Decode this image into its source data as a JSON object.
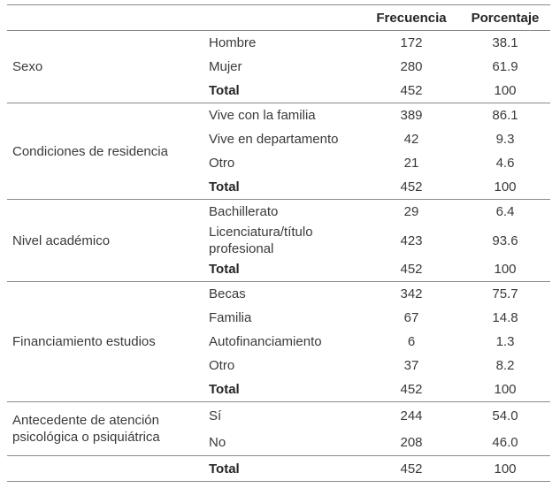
{
  "colors": {
    "text": "#3a3a3a",
    "bold_text": "#262626",
    "rule": "#8a8a8a",
    "background": "#ffffff"
  },
  "table": {
    "headers": {
      "frecuencia": "Frecuencia",
      "porcentaje": "Porcentaje"
    },
    "sections": [
      {
        "category": "Sexo",
        "rows": [
          {
            "label": "Hombre",
            "frecuencia": "172",
            "porcentaje": "38.1"
          },
          {
            "label": "Mujer",
            "frecuencia": "280",
            "porcentaje": "61.9"
          },
          {
            "label": "Total",
            "frecuencia": "452",
            "porcentaje": "100"
          }
        ]
      },
      {
        "category": "Condiciones de residencia",
        "rows": [
          {
            "label": "Vive con la familia",
            "frecuencia": "389",
            "porcentaje": "86.1"
          },
          {
            "label": "Vive en departamento",
            "frecuencia": "42",
            "porcentaje": "9.3"
          },
          {
            "label": "Otro",
            "frecuencia": "21",
            "porcentaje": "4.6"
          },
          {
            "label": "Total",
            "frecuencia": "452",
            "porcentaje": "100"
          }
        ]
      },
      {
        "category": "Nivel académico",
        "rows": [
          {
            "label": "Bachillerato",
            "frecuencia": "29",
            "porcentaje": "6.4"
          },
          {
            "label": "Licenciatura/título profesional",
            "frecuencia": "423",
            "porcentaje": "93.6"
          },
          {
            "label": "Total",
            "frecuencia": "452",
            "porcentaje": "100"
          }
        ]
      },
      {
        "category": "Financiamiento estudios",
        "rows": [
          {
            "label": "Becas",
            "frecuencia": "342",
            "porcentaje": "75.7"
          },
          {
            "label": "Familia",
            "frecuencia": "67",
            "porcentaje": "14.8"
          },
          {
            "label": "Autofinanciamiento",
            "frecuencia": "6",
            "porcentaje": "1.3"
          },
          {
            "label": "Otro",
            "frecuencia": "37",
            "porcentaje": "8.2"
          },
          {
            "label": "Total",
            "frecuencia": "452",
            "porcentaje": "100"
          }
        ]
      },
      {
        "category": "Antecedente de atención psicológica o psiquiátrica",
        "rows": [
          {
            "label": "Sí",
            "frecuencia": "244",
            "porcentaje": "54.0"
          },
          {
            "label": "No",
            "frecuencia": "208",
            "porcentaje": "46.0"
          }
        ]
      },
      {
        "category": "",
        "rows": [
          {
            "label": "Total",
            "frecuencia": "452",
            "porcentaje": "100"
          }
        ]
      }
    ]
  }
}
